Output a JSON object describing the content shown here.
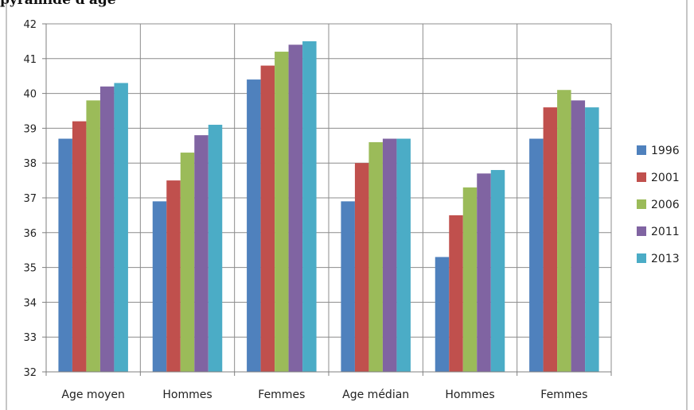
{
  "title_fragment": "pyramide d'âge",
  "chart_data": {
    "type": "bar",
    "categories": [
      "Age moyen",
      "Hommes",
      "Femmes",
      "Age médian",
      "Hommes",
      "Femmes"
    ],
    "series": [
      {
        "name": "1996",
        "color": "#4f81bd",
        "values": [
          38.7,
          36.9,
          40.4,
          36.9,
          35.3,
          38.7
        ]
      },
      {
        "name": "2001",
        "color": "#c0504d",
        "values": [
          39.2,
          37.5,
          40.8,
          38.0,
          36.5,
          39.6
        ]
      },
      {
        "name": "2006",
        "color": "#9bbb59",
        "values": [
          39.8,
          38.3,
          41.2,
          38.6,
          37.3,
          40.1
        ]
      },
      {
        "name": "2011",
        "color": "#8064a2",
        "values": [
          40.2,
          38.8,
          41.4,
          38.7,
          37.7,
          39.8
        ]
      },
      {
        "name": "2013",
        "color": "#4bacc6",
        "values": [
          40.3,
          39.1,
          41.5,
          38.7,
          37.8,
          39.6
        ]
      }
    ],
    "ylim": [
      32,
      42
    ],
    "yticks": [
      32,
      33,
      34,
      35,
      36,
      37,
      38,
      39,
      40,
      41,
      42
    ],
    "grid": true,
    "legend_position": "right"
  }
}
